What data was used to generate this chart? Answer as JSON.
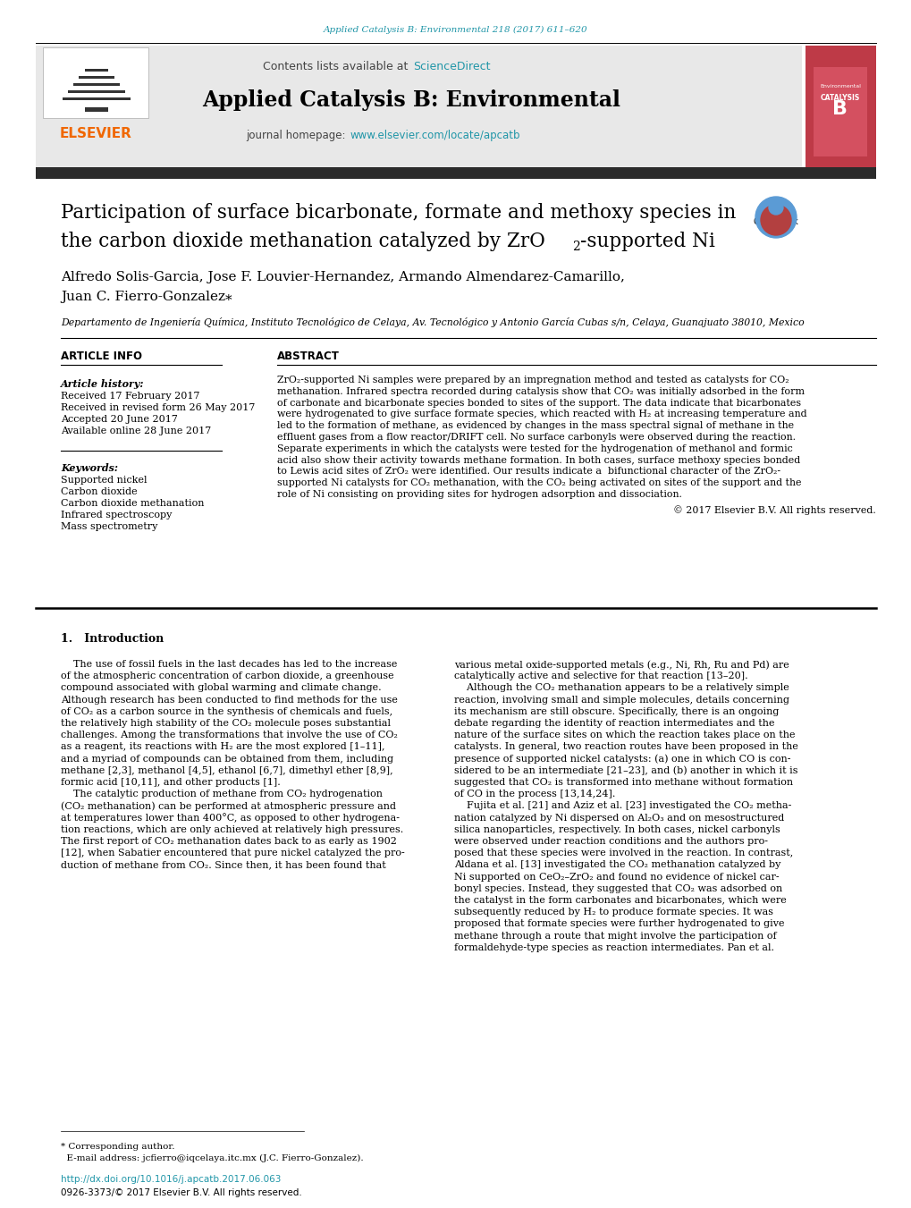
{
  "page_width": 10.2,
  "page_height": 13.51,
  "bg_color": "#ffffff",
  "top_citation": "Applied Catalysis B: Environmental 218 (2017) 611–620",
  "top_citation_color": "#2196a8",
  "header_bg": "#e8e8e8",
  "header_contents_text": "Contents lists available at ",
  "header_sciencedirect": "ScienceDirect",
  "header_sciencedirect_color": "#2196a8",
  "journal_name": "Applied Catalysis B: Environmental",
  "journal_homepage_text": "journal homepage: ",
  "journal_homepage_url": "www.elsevier.com/locate/apcatb",
  "journal_homepage_color": "#2196a8",
  "elsevier_color": "#f06700",
  "dark_bar_color": "#2b2b2b",
  "article_title_line1": "Participation of surface bicarbonate, formate and methoxy species in",
  "article_title_line2a": "the carbon dioxide methanation catalyzed by ZrO",
  "article_title_line2_sub": "2",
  "article_title_line2b": "-supported Ni",
  "authors": "Alfredo Solis-Garcia, Jose F. Louvier-Hernandez, Armando Almendarez-Camarillo,",
  "authors2": "Juan C. Fierro-Gonzalez",
  "affiliation": "Departamento de Ingeniería Química, Instituto Tecnológico de Celaya, Av. Tecnológico y Antonio García Cubas s/n, Celaya, Guanajuato 38010, Mexico",
  "article_info_label": "ARTICLE INFO",
  "abstract_label": "ABSTRACT",
  "article_history_label": "Article history:",
  "received1": "Received 17 February 2017",
  "received2": "Received in revised form 26 May 2017",
  "accepted": "Accepted 20 June 2017",
  "available": "Available online 28 June 2017",
  "keywords_label": "Keywords:",
  "keywords": [
    "Supported nickel",
    "Carbon dioxide",
    "Carbon dioxide methanation",
    "Infrared spectroscopy",
    "Mass spectrometry"
  ],
  "copyright": "© 2017 Elsevier B.V. All rights reserved.",
  "intro_heading": "1.   Introduction",
  "footer_doi": "http://dx.doi.org/10.1016/j.apcatb.2017.06.063",
  "footer_issn": "0926-3373/© 2017 Elsevier B.V. All rights reserved.",
  "abstract_lines": [
    "ZrO₂-supported Ni samples were prepared by an impregnation method and tested as catalysts for CO₂",
    "methanation. Infrared spectra recorded during catalysis show that CO₂ was initially adsorbed in the form",
    "of carbonate and bicarbonate species bonded to sites of the support. The data indicate that bicarbonates",
    "were hydrogenated to give surface formate species, which reacted with H₂ at increasing temperature and",
    "led to the formation of methane, as evidenced by changes in the mass spectral signal of methane in the",
    "effluent gases from a flow reactor/DRIFT cell. No surface carbonyls were observed during the reaction.",
    "Separate experiments in which the catalysts were tested for the hydrogenation of methanol and formic",
    "acid also show their activity towards methane formation. In both cases, surface methoxy species bonded",
    "to Lewis acid sites of ZrO₂ were identified. Our results indicate a  bifunctional character of the ZrO₂-",
    "supported Ni catalysts for CO₂ methanation, with the CO₂ being activated on sites of the support and the",
    "role of Ni consisting on providing sites for hydrogen adsorption and dissociation."
  ],
  "col1_lines": [
    "    The use of fossil fuels in the last decades has led to the increase",
    "of the atmospheric concentration of carbon dioxide, a greenhouse",
    "compound associated with global warming and climate change.",
    "Although research has been conducted to find methods for the use",
    "of CO₂ as a carbon source in the synthesis of chemicals and fuels,",
    "the relatively high stability of the CO₂ molecule poses substantial",
    "challenges. Among the transformations that involve the use of CO₂",
    "as a reagent, its reactions with H₂ are the most explored [1–11],",
    "and a myriad of compounds can be obtained from them, including",
    "methane [2,3], methanol [4,5], ethanol [6,7], dimethyl ether [8,9],",
    "formic acid [10,11], and other products [1].",
    "    The catalytic production of methane from CO₂ hydrogenation",
    "(CO₂ methanation) can be performed at atmospheric pressure and",
    "at temperatures lower than 400°C, as opposed to other hydrogena-",
    "tion reactions, which are only achieved at relatively high pressures.",
    "The first report of CO₂ methanation dates back to as early as 1902",
    "[12], when Sabatier encountered that pure nickel catalyzed the pro-",
    "duction of methane from CO₂. Since then, it has been found that"
  ],
  "col2_lines": [
    "various metal oxide-supported metals (e.g., Ni, Rh, Ru and Pd) are",
    "catalytically active and selective for that reaction [13–20].",
    "    Although the CO₂ methanation appears to be a relatively simple",
    "reaction, involving small and simple molecules, details concerning",
    "its mechanism are still obscure. Specifically, there is an ongoing",
    "debate regarding the identity of reaction intermediates and the",
    "nature of the surface sites on which the reaction takes place on the",
    "catalysts. In general, two reaction routes have been proposed in the",
    "presence of supported nickel catalysts: (a) one in which CO is con-",
    "sidered to be an intermediate [21–23], and (b) another in which it is",
    "suggested that CO₂ is transformed into methane without formation",
    "of CO in the process [13,14,24].",
    "    Fujita et al. [21] and Aziz et al. [23] investigated the CO₂ metha-",
    "nation catalyzed by Ni dispersed on Al₂O₃ and on mesostructured",
    "silica nanoparticles, respectively. In both cases, nickel carbonyls",
    "were observed under reaction conditions and the authors pro-",
    "posed that these species were involved in the reaction. In contrast,",
    "Aldana et al. [13] investigated the CO₂ methanation catalyzed by",
    "Ni supported on CeO₂–ZrO₂ and found no evidence of nickel car-",
    "bonyl species. Instead, they suggested that CO₂ was adsorbed on",
    "the catalyst in the form carbonates and bicarbonates, which were",
    "subsequently reduced by H₂ to produce formate species. It was",
    "proposed that formate species were further hydrogenated to give",
    "methane through a route that might involve the participation of",
    "formaldehyde-type species as reaction intermediates. Pan et al."
  ]
}
